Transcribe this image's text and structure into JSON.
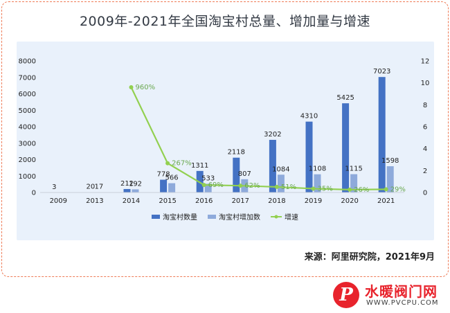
{
  "title": "2009年-2021年全国淘宝村总量、增加量与增速",
  "source": "来源：阿里研究院，2021年9月",
  "logo": {
    "cn": "水暖阀门网",
    "url": "WWW.PVCPU.COM",
    "mark": "P"
  },
  "colors": {
    "total": "#4472c4",
    "added": "#8eaadb",
    "growth": "#92d050",
    "frame": "#ee7a55"
  },
  "chart_data": {
    "type": "bar",
    "title": "2009年-2021年全国淘宝村总量、增加量与增速",
    "categories": [
      "2009",
      "2013",
      "2014",
      "2015",
      "2016",
      "2017",
      "2018",
      "2019",
      "2020",
      "2021"
    ],
    "series": [
      {
        "name": "淘宝村数量",
        "type": "bar",
        "axis": "left",
        "values": [
          3,
          20,
          212,
          778,
          1311,
          2118,
          3202,
          4310,
          5425,
          7023
        ]
      },
      {
        "name": "淘宝村增加数",
        "type": "bar",
        "axis": "left",
        "values": [
          null,
          17,
          192,
          566,
          533,
          807,
          1084,
          1108,
          1115,
          1598
        ]
      },
      {
        "name": "增速",
        "type": "line",
        "axis": "right",
        "values": [
          null,
          null,
          9.6,
          2.67,
          0.69,
          0.62,
          0.51,
          0.35,
          0.26,
          0.29
        ],
        "labels": [
          null,
          null,
          "960%",
          "267%",
          "69%",
          "62%",
          "51%",
          "35%",
          "26%",
          "29%"
        ]
      }
    ],
    "y_left": {
      "min": 0,
      "max": 8000,
      "ticks": [
        "0",
        "1000",
        "2000",
        "3000",
        "4000",
        "5000",
        "6000",
        "7000",
        "8000"
      ]
    },
    "y_right": {
      "min": 0,
      "max": 12,
      "ticks": [
        "0",
        "2",
        "4",
        "6",
        "8",
        "10",
        "12"
      ]
    },
    "legend": {
      "position": "bottom",
      "items": [
        "淘宝村数量",
        "淘宝村增加数",
        "增速"
      ]
    },
    "grid": false
  }
}
